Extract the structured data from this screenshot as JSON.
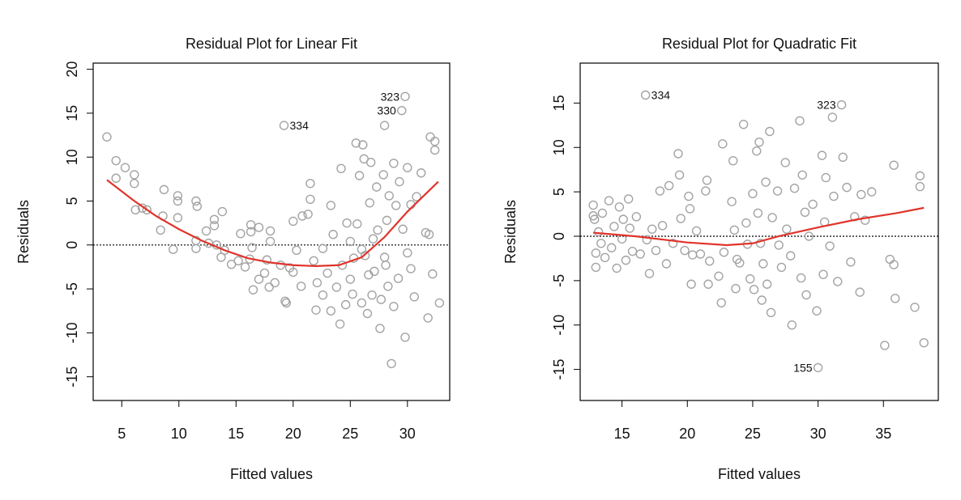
{
  "chart_data": [
    {
      "type": "scatter",
      "title": "Residual Plot for Linear Fit",
      "x_label": "Fitted values",
      "y_label": "Residuals",
      "xlim": [
        2.5,
        33.7
      ],
      "ylim": [
        -17.7,
        20.7
      ],
      "xticks": [
        5,
        10,
        15,
        20,
        25,
        30
      ],
      "yticks": [
        -15,
        -10,
        -5,
        0,
        5,
        10,
        15,
        20
      ],
      "point_color": "#a3a3a3",
      "reference_line": 0,
      "x": [
        3.7,
        4.5,
        4.5,
        5.3,
        6.1,
        6.1,
        6.2,
        6.8,
        7.2,
        8.6,
        8.7,
        8.4,
        9.5,
        9.9,
        9.9,
        9.9,
        11.5,
        11.6,
        11.5,
        11.5,
        12.4,
        12.6,
        13.1,
        13.1,
        13.3,
        13.7,
        13.8,
        14.0,
        14.6,
        15.2,
        15.4,
        15.8,
        16.2,
        16.3,
        16.3,
        16.4,
        16.5,
        17.0,
        17.0,
        17.5,
        17.7,
        17.9,
        18.0,
        18.0,
        18.4,
        18.9,
        19.2,
        19.3,
        19.4,
        19.7,
        20.0,
        20.0,
        20.3,
        20.7,
        20.8,
        21.3,
        21.5,
        21.5,
        21.8,
        22.0,
        22.1,
        22.6,
        22.6,
        23.0,
        23.3,
        23.3,
        23.5,
        23.8,
        24.1,
        24.2,
        24.3,
        24.6,
        24.7,
        25.0,
        25.2,
        25.3,
        25.5,
        25.6,
        25.8,
        26.0,
        26.1,
        26.2,
        26.3,
        26.5,
        26.6,
        26.7,
        26.8,
        26.9,
        27.1,
        27.3,
        27.4,
        27.6,
        27.7,
        27.9,
        28.0,
        28.1,
        28.2,
        28.3,
        28.4,
        28.6,
        28.8,
        28.8,
        29.0,
        29.2,
        29.3,
        29.5,
        29.6,
        29.8,
        29.8,
        30.0,
        30.0,
        30.3,
        30.3,
        30.6,
        30.8,
        31.2,
        31.6,
        31.8,
        32.0,
        32.2,
        32.4,
        32.4,
        32.8,
        31.9,
        28.0,
        27.0,
        26.0,
        25.0
      ],
      "y": [
        12.3,
        9.6,
        7.6,
        8.8,
        8.0,
        7.0,
        4.0,
        4.2,
        4.0,
        3.3,
        6.3,
        1.7,
        -0.5,
        5.6,
        5.0,
        3.1,
        5.0,
        4.4,
        0.5,
        -0.4,
        1.6,
        0.2,
        2.9,
        2.2,
        0.0,
        -1.4,
        3.8,
        -0.6,
        -2.2,
        -1.8,
        1.3,
        -2.5,
        -1.6,
        2.3,
        1.5,
        -0.3,
        -5.1,
        -3.9,
        2.0,
        -3.2,
        -1.7,
        -4.8,
        1.6,
        0.4,
        -4.3,
        -2.3,
        13.6,
        -6.4,
        -6.6,
        -2.6,
        -3.1,
        2.7,
        -0.6,
        -4.7,
        3.3,
        3.5,
        7.0,
        5.2,
        -1.8,
        -7.4,
        -4.3,
        -0.4,
        -5.7,
        -3.2,
        4.5,
        -7.5,
        1.2,
        -4.8,
        -9.0,
        8.7,
        -2.3,
        -6.8,
        2.5,
        -3.9,
        -5.6,
        -1.5,
        11.6,
        2.4,
        7.9,
        -6.6,
        11.4,
        9.8,
        -1.2,
        -7.8,
        -3.4,
        4.8,
        9.4,
        -5.7,
        -3.0,
        6.6,
        1.7,
        -9.5,
        -6.2,
        8.0,
        13.6,
        -2.3,
        2.8,
        -4.7,
        5.6,
        -13.5,
        9.3,
        -7.0,
        4.5,
        -3.8,
        7.2,
        15.3,
        1.8,
        -10.5,
        16.9,
        8.8,
        -0.9,
        4.6,
        -2.7,
        -5.9,
        5.5,
        8.2,
        1.4,
        -8.3,
        12.3,
        -3.3,
        11.8,
        10.8,
        -6.6,
        1.2,
        -1.4,
        0.7,
        -0.5,
        0.4
      ],
      "fit": {
        "color": "#e0342b",
        "x": [
          3.7,
          6,
          8,
          10,
          12,
          14,
          16,
          18,
          20,
          22,
          24,
          26,
          28,
          30,
          32.7
        ],
        "y": [
          7.4,
          5.1,
          3.3,
          1.8,
          0.5,
          -0.6,
          -1.5,
          -2.0,
          -2.3,
          -2.4,
          -2.3,
          -1.4,
          0.9,
          3.8,
          7.2
        ]
      },
      "annotations": [
        {
          "text": "334",
          "x": 19.2,
          "y": 13.6,
          "position": "right"
        },
        {
          "text": "323",
          "x": 29.8,
          "y": 16.9,
          "position": "left"
        },
        {
          "text": "330",
          "x": 29.5,
          "y": 15.3,
          "position": "left"
        }
      ]
    },
    {
      "type": "scatter",
      "title": "Residual Plot for Quadratic Fit",
      "x_label": "Fitted values",
      "y_label": "Residuals",
      "xlim": [
        11.8,
        39.2
      ],
      "ylim": [
        -18.5,
        19.5
      ],
      "xticks": [
        15,
        20,
        25,
        30,
        35
      ],
      "yticks": [
        -15,
        -10,
        -5,
        0,
        5,
        10,
        15
      ],
      "point_color": "#a3a3a3",
      "reference_line": 0,
      "x": [
        12.8,
        12.8,
        12.9,
        13.0,
        13.0,
        13.2,
        13.4,
        13.5,
        13.7,
        14.0,
        14.2,
        14.4,
        14.6,
        14.8,
        15.0,
        15.1,
        15.3,
        15.5,
        15.6,
        15.8,
        16.1,
        16.4,
        16.8,
        16.9,
        17.1,
        17.3,
        17.6,
        17.9,
        18.1,
        18.4,
        18.6,
        18.9,
        19.3,
        19.4,
        19.5,
        19.8,
        20.1,
        20.2,
        20.3,
        20.4,
        20.7,
        21.4,
        21.5,
        21.6,
        21.7,
        22.4,
        22.6,
        22.7,
        22.8,
        23.4,
        23.5,
        23.6,
        23.7,
        23.8,
        24.3,
        24.5,
        24.6,
        24.8,
        25.0,
        25.1,
        25.3,
        25.4,
        25.5,
        25.6,
        25.7,
        25.8,
        26.0,
        26.1,
        26.3,
        26.4,
        26.5,
        26.9,
        27.2,
        27.5,
        27.6,
        27.9,
        28.0,
        28.2,
        28.6,
        28.7,
        28.8,
        29.0,
        29.1,
        29.3,
        29.6,
        29.9,
        30.0,
        30.3,
        30.4,
        30.5,
        30.6,
        30.9,
        31.1,
        31.2,
        31.5,
        31.8,
        31.9,
        32.2,
        32.5,
        32.8,
        33.2,
        33.3,
        33.6,
        34.1,
        35.1,
        35.5,
        35.8,
        35.8,
        35.9,
        37.4,
        37.8,
        37.8,
        38.1,
        24.0,
        21.0,
        27.0
      ],
      "y": [
        3.5,
        2.3,
        1.9,
        -1.9,
        -3.5,
        0.5,
        -0.8,
        2.6,
        -2.4,
        4.0,
        -1.3,
        1.1,
        -3.6,
        3.3,
        -0.3,
        1.9,
        -2.7,
        4.2,
        0.9,
        -1.7,
        2.2,
        -2.0,
        15.9,
        -0.4,
        -4.2,
        0.8,
        -1.6,
        5.1,
        1.2,
        -3.1,
        5.7,
        -0.8,
        9.3,
        6.9,
        2.0,
        -1.6,
        4.5,
        3.1,
        -5.4,
        -2.1,
        0.6,
        5.1,
        6.3,
        -5.4,
        -2.8,
        -4.5,
        -7.5,
        10.4,
        -1.8,
        3.9,
        8.5,
        0.7,
        -5.9,
        -2.6,
        12.6,
        1.5,
        -0.9,
        -4.8,
        4.8,
        -6.0,
        9.6,
        2.6,
        10.6,
        -0.8,
        -7.2,
        -3.1,
        6.1,
        -5.4,
        11.8,
        -8.6,
        2.1,
        5.1,
        -3.5,
        8.3,
        0.8,
        -2.2,
        -10.0,
        5.4,
        13.0,
        -4.7,
        6.9,
        2.7,
        -6.6,
        0.0,
        3.6,
        -8.4,
        -14.8,
        9.1,
        -4.3,
        1.6,
        6.6,
        -1.1,
        13.4,
        4.5,
        -5.1,
        14.8,
        8.9,
        5.5,
        -2.9,
        2.2,
        -6.3,
        4.7,
        1.8,
        5.0,
        -12.3,
        -2.6,
        -3.2,
        8.0,
        -7.0,
        -8.0,
        5.6,
        6.8,
        -12.0,
        -3.0,
        -2.0,
        -1.0
      ],
      "fit": {
        "color": "#e0342b",
        "x": [
          12.8,
          16,
          20,
          23,
          25,
          27,
          30,
          33,
          36,
          38.1
        ],
        "y": [
          0.4,
          0.0,
          -0.7,
          -1.0,
          -0.8,
          0.0,
          1.0,
          1.9,
          2.6,
          3.2
        ]
      },
      "annotations": [
        {
          "text": "334",
          "x": 16.8,
          "y": 15.9,
          "position": "right"
        },
        {
          "text": "323",
          "x": 31.8,
          "y": 14.8,
          "position": "left"
        },
        {
          "text": "155",
          "x": 30.0,
          "y": -14.8,
          "position": "left"
        }
      ]
    }
  ]
}
